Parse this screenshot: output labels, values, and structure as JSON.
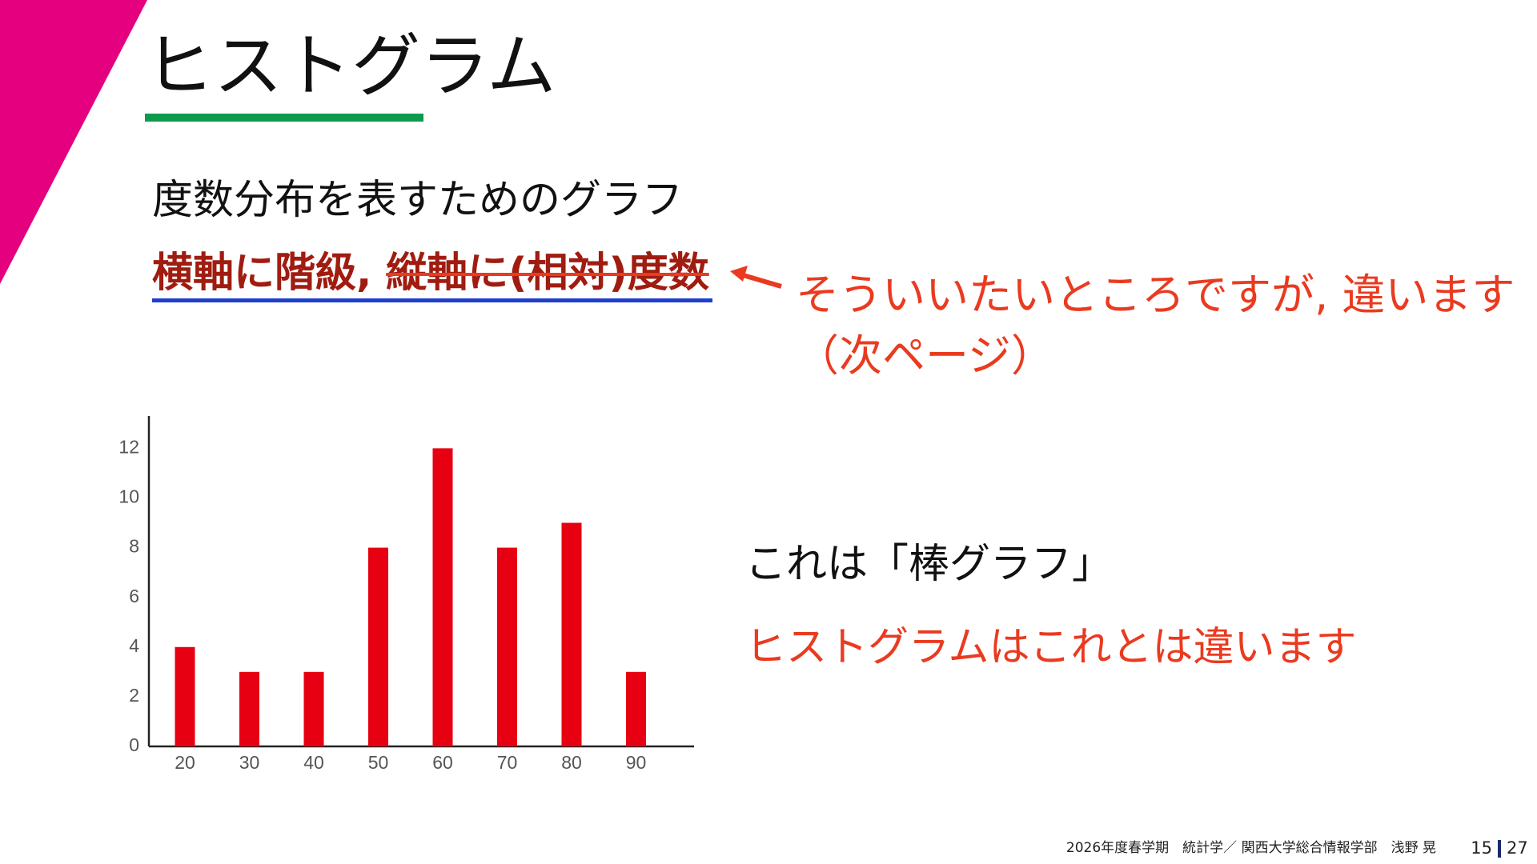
{
  "slide": {
    "title": "ヒストグラム",
    "line1": "度数分布を表すためのグラフ",
    "line2a": "横軸に階級, ",
    "line2b": "縦軸に(相対)度数",
    "note1": "そういいたいところですが, 違います",
    "note2": "（次ページ）",
    "caption1": "これは「棒グラフ」",
    "caption2": "ヒストグラムはこれとは違います"
  },
  "footer": {
    "course": "2026年度春学期　統計学／ 関西大学総合情報学部　浅野 晃",
    "page": 15,
    "total": 27
  },
  "chart_data": {
    "type": "bar",
    "categories": [
      "20",
      "30",
      "40",
      "50",
      "60",
      "70",
      "80",
      "90"
    ],
    "values": [
      4,
      3,
      3,
      8,
      12,
      8,
      9,
      3
    ],
    "color": "#e60012",
    "ylim": [
      0,
      13.3
    ],
    "yticks": [
      0,
      2,
      4,
      6,
      8,
      10,
      12
    ]
  }
}
